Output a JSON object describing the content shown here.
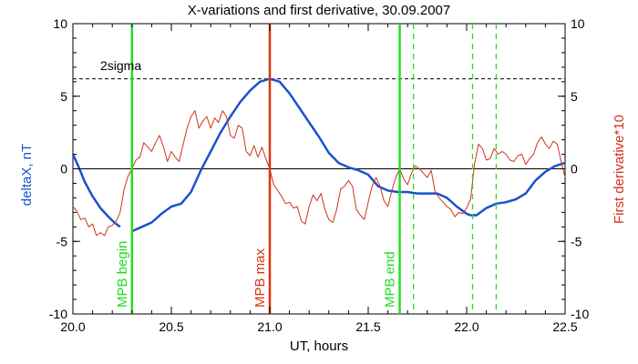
{
  "chart_data": {
    "type": "line",
    "title": "X-variations and first derivative, 30.09.2007",
    "xlabel": "UT, hours",
    "ylabel_left": "deltaX, nT",
    "ylabel_right": "First derivative*10",
    "xlim": [
      20.0,
      22.5
    ],
    "ylim": [
      -10,
      10
    ],
    "x_ticks": [
      "20.0",
      "20.5",
      "21.0",
      "21.5",
      "22.0",
      "22.5"
    ],
    "y_ticks_left": [
      "-10",
      "-5",
      "0",
      "5",
      "10"
    ],
    "y_ticks_right": [
      "-10",
      "-5",
      "0",
      "5",
      "10"
    ],
    "colors": {
      "deltaX": "#1a52cc",
      "derivative": "#d2311c",
      "mpb": "#22dd22",
      "dashed_green": "#22dd22",
      "threshold": "#000000"
    },
    "threshold": {
      "label": "2sigma",
      "value": 6.2
    },
    "zero_line": 0,
    "vertical_markers": [
      {
        "label": "MPB begin",
        "x": 20.3,
        "color": "#22dd22",
        "style": "solid"
      },
      {
        "label": "MPB max",
        "x": 21.0,
        "color": "#dd3311",
        "style": "solid"
      },
      {
        "label": "MPB end",
        "x": 21.66,
        "color": "#22dd22",
        "style": "solid"
      }
    ],
    "dashed_markers": [
      21.73,
      22.03,
      22.15
    ],
    "series": [
      {
        "name": "deltaX",
        "axis": "left",
        "segments": [
          {
            "x": [
              20.0,
              20.03,
              20.06,
              20.1,
              20.14,
              20.18,
              20.21,
              20.24
            ],
            "y": [
              1.0,
              0.1,
              -0.9,
              -1.9,
              -2.7,
              -3.3,
              -3.7,
              -4.0
            ]
          },
          {
            "x": [
              20.3,
              20.35,
              20.4,
              20.45,
              20.5,
              20.55,
              20.6,
              20.65,
              20.7,
              20.75,
              20.8,
              20.85,
              20.9,
              20.95,
              21.0,
              21.05,
              21.1,
              21.15,
              21.2,
              21.25,
              21.3,
              21.35,
              21.4,
              21.45,
              21.5,
              21.55,
              21.6,
              21.65,
              21.7,
              21.75,
              21.8,
              21.85,
              21.9,
              21.95,
              22.0,
              22.02,
              22.05,
              22.1,
              22.15,
              22.2,
              22.25,
              22.3,
              22.35,
              22.4,
              22.45,
              22.5
            ],
            "y": [
              -4.3,
              -4.0,
              -3.7,
              -3.1,
              -2.6,
              -2.4,
              -1.6,
              -0.1,
              1.2,
              2.5,
              3.6,
              4.6,
              5.4,
              6.0,
              6.2,
              6.0,
              5.2,
              4.2,
              3.2,
              2.2,
              1.1,
              0.4,
              0.1,
              -0.1,
              -0.4,
              -1.2,
              -1.5,
              -1.6,
              -1.6,
              -1.7,
              -1.7,
              -1.7,
              -2.0,
              -2.6,
              -3.1,
              -3.2,
              -3.2,
              -2.7,
              -2.4,
              -2.3,
              -2.1,
              -1.7,
              -0.8,
              -0.2,
              0.2,
              0.4
            ]
          }
        ]
      },
      {
        "name": "First derivative*10",
        "axis": "right",
        "segments": [
          {
            "x": [
              20.0,
              20.02,
              20.04,
              20.06,
              20.08,
              20.1,
              20.12,
              20.14,
              20.16,
              20.18,
              20.2,
              20.22,
              20.24,
              20.26,
              20.28,
              20.3,
              20.32,
              20.34,
              20.36,
              20.38,
              20.4,
              20.42,
              20.44,
              20.46,
              20.48,
              20.5,
              20.52,
              20.54,
              20.56,
              20.58,
              20.6,
              20.62,
              20.64,
              20.66,
              20.68,
              20.7,
              20.72,
              20.74,
              20.76,
              20.78,
              20.8,
              20.82,
              20.84,
              20.86,
              20.88,
              20.9,
              20.92,
              20.94,
              20.96,
              20.98,
              21.0,
              21.02,
              21.04,
              21.06,
              21.08,
              21.1,
              21.12,
              21.14,
              21.16,
              21.18,
              21.2,
              21.22,
              21.24,
              21.26,
              21.28,
              21.3,
              21.32,
              21.34,
              21.36,
              21.38,
              21.4,
              21.42,
              21.44,
              21.46,
              21.48,
              21.5,
              21.52,
              21.54,
              21.56,
              21.58,
              21.6,
              21.62,
              21.64,
              21.66,
              21.68,
              21.7,
              21.72,
              21.74,
              21.76,
              21.78,
              21.8,
              21.82,
              21.84,
              21.86,
              21.88,
              21.9,
              21.92,
              21.94,
              21.96,
              21.98,
              22.0,
              22.02,
              22.04,
              22.06,
              22.08,
              22.1,
              22.12,
              22.14,
              22.16,
              22.18,
              22.2,
              22.22,
              22.24,
              22.26,
              22.28,
              22.3,
              22.32,
              22.34,
              22.36,
              22.38,
              22.4,
              22.42,
              22.44,
              22.46,
              22.48,
              22.5
            ],
            "y": [
              -2.6,
              -2.9,
              -3.5,
              -3.4,
              -4.0,
              -3.8,
              -4.6,
              -4.4,
              -4.6,
              -4.0,
              -3.9,
              -3.6,
              -3.0,
              -1.4,
              -0.5,
              0.0,
              0.6,
              0.8,
              1.8,
              1.5,
              1.2,
              1.8,
              2.3,
              1.5,
              0.5,
              1.2,
              0.8,
              0.5,
              1.7,
              2.8,
              3.6,
              4.0,
              2.8,
              3.3,
              3.6,
              2.8,
              3.5,
              3.2,
              4.0,
              3.6,
              2.3,
              2.1,
              3.0,
              2.8,
              1.2,
              0.9,
              1.6,
              0.8,
              1.5,
              0.7,
              0.0,
              -1.1,
              -1.5,
              -1.9,
              -2.4,
              -2.3,
              -2.7,
              -2.6,
              -3.6,
              -3.8,
              -2.6,
              -1.8,
              -2.2,
              -1.7,
              -2.8,
              -3.5,
              -3.7,
              -2.8,
              -1.4,
              -1.2,
              -0.8,
              -1.2,
              -2.8,
              -3.2,
              -3.5,
              -2.3,
              -1.2,
              -0.6,
              -1.2,
              -2.2,
              -2.6,
              -1.5,
              -0.6,
              0.0,
              -0.7,
              -1.1,
              -0.3,
              0.2,
              0.0,
              -0.3,
              -0.6,
              -0.1,
              -1.6,
              -2.0,
              -2.3,
              -2.6,
              -2.8,
              -3.3,
              -3.0,
              -3.1,
              -2.7,
              -2.1,
              0.3,
              1.7,
              1.4,
              0.6,
              0.7,
              1.4,
              1.0,
              1.2,
              1.0,
              0.6,
              0.5,
              0.9,
              1.0,
              0.3,
              0.7,
              1.0,
              1.8,
              2.2,
              1.7,
              1.4,
              1.9,
              1.7,
              0.5,
              -0.6
            ]
          }
        ]
      }
    ]
  }
}
